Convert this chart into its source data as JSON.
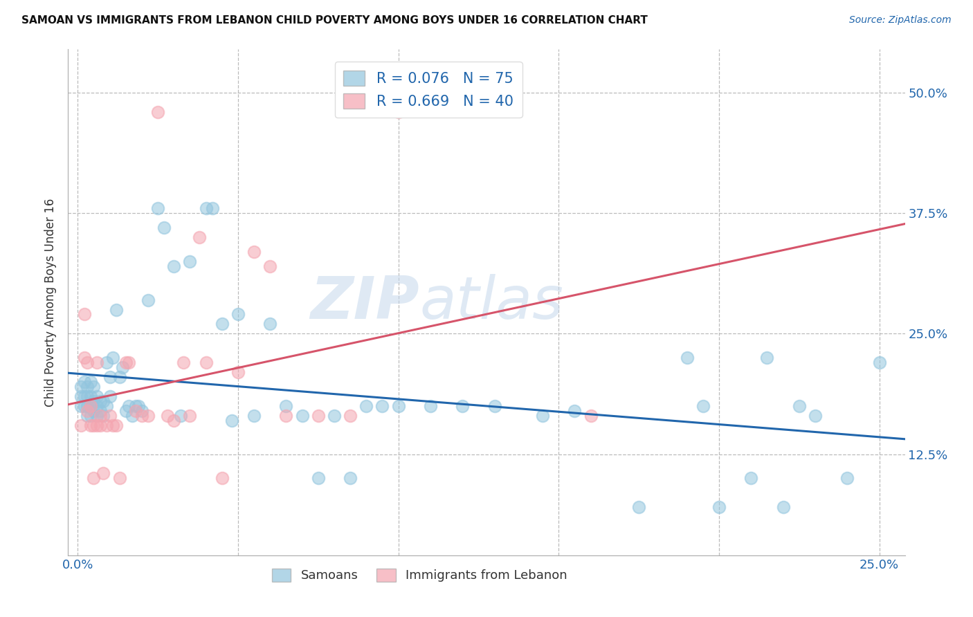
{
  "title": "SAMOAN VS IMMIGRANTS FROM LEBANON CHILD POVERTY AMONG BOYS UNDER 16 CORRELATION CHART",
  "source": "Source: ZipAtlas.com",
  "ylabel_label": "Child Poverty Among Boys Under 16",
  "legend_label1": "Samoans",
  "legend_label2": "Immigrants from Lebanon",
  "R1": 0.076,
  "N1": 75,
  "R2": 0.669,
  "N2": 40,
  "color_blue": "#92C5DE",
  "color_pink": "#F4A5B0",
  "line_blue": "#2166AC",
  "line_pink": "#D6546A",
  "watermark_zip": "ZIP",
  "watermark_atlas": "atlas",
  "blue_x": [
    0.001,
    0.001,
    0.001,
    0.002,
    0.002,
    0.002,
    0.003,
    0.003,
    0.003,
    0.003,
    0.004,
    0.004,
    0.004,
    0.004,
    0.005,
    0.005,
    0.005,
    0.006,
    0.006,
    0.006,
    0.007,
    0.007,
    0.008,
    0.008,
    0.009,
    0.009,
    0.01,
    0.01,
    0.011,
    0.012,
    0.013,
    0.014,
    0.015,
    0.016,
    0.017,
    0.018,
    0.019,
    0.02,
    0.022,
    0.025,
    0.027,
    0.03,
    0.032,
    0.035,
    0.04,
    0.042,
    0.045,
    0.048,
    0.05,
    0.055,
    0.06,
    0.065,
    0.07,
    0.075,
    0.08,
    0.085,
    0.09,
    0.095,
    0.1,
    0.11,
    0.12,
    0.13,
    0.145,
    0.155,
    0.175,
    0.19,
    0.195,
    0.2,
    0.21,
    0.215,
    0.22,
    0.225,
    0.23,
    0.24,
    0.25
  ],
  "blue_y": [
    0.195,
    0.185,
    0.175,
    0.2,
    0.185,
    0.175,
    0.195,
    0.185,
    0.175,
    0.165,
    0.2,
    0.185,
    0.175,
    0.165,
    0.195,
    0.18,
    0.17,
    0.185,
    0.175,
    0.165,
    0.18,
    0.17,
    0.18,
    0.165,
    0.22,
    0.175,
    0.205,
    0.185,
    0.225,
    0.275,
    0.205,
    0.215,
    0.17,
    0.175,
    0.165,
    0.175,
    0.175,
    0.17,
    0.285,
    0.38,
    0.36,
    0.32,
    0.165,
    0.325,
    0.38,
    0.38,
    0.26,
    0.16,
    0.27,
    0.165,
    0.26,
    0.175,
    0.165,
    0.1,
    0.165,
    0.1,
    0.175,
    0.175,
    0.175,
    0.175,
    0.175,
    0.175,
    0.165,
    0.17,
    0.07,
    0.225,
    0.175,
    0.07,
    0.1,
    0.225,
    0.07,
    0.175,
    0.165,
    0.1,
    0.22
  ],
  "pink_x": [
    0.001,
    0.002,
    0.002,
    0.003,
    0.003,
    0.004,
    0.004,
    0.005,
    0.005,
    0.006,
    0.006,
    0.007,
    0.007,
    0.008,
    0.009,
    0.01,
    0.011,
    0.012,
    0.013,
    0.015,
    0.016,
    0.018,
    0.02,
    0.022,
    0.025,
    0.028,
    0.03,
    0.033,
    0.035,
    0.038,
    0.04,
    0.045,
    0.05,
    0.055,
    0.06,
    0.065,
    0.075,
    0.085,
    0.1,
    0.16
  ],
  "pink_y": [
    0.155,
    0.225,
    0.27,
    0.17,
    0.22,
    0.155,
    0.175,
    0.155,
    0.1,
    0.155,
    0.22,
    0.165,
    0.155,
    0.105,
    0.155,
    0.165,
    0.155,
    0.155,
    0.1,
    0.22,
    0.22,
    0.17,
    0.165,
    0.165,
    0.48,
    0.165,
    0.16,
    0.22,
    0.165,
    0.35,
    0.22,
    0.1,
    0.21,
    0.335,
    0.32,
    0.165,
    0.165,
    0.165,
    0.48,
    0.165
  ],
  "xlim": [
    -0.003,
    0.258
  ],
  "ylim": [
    0.02,
    0.545
  ],
  "yticks": [
    0.125,
    0.25,
    0.375,
    0.5
  ],
  "ytick_labels": [
    "12.5%",
    "25.0%",
    "37.5%",
    "50.0%"
  ],
  "xticks": [
    0.0,
    0.25
  ],
  "xtick_labels": [
    "0.0%",
    "25.0%"
  ],
  "grid_xticks": [
    0.0,
    0.05,
    0.1,
    0.15,
    0.2,
    0.25
  ],
  "grid_yticks": [
    0.125,
    0.25,
    0.375,
    0.5
  ]
}
